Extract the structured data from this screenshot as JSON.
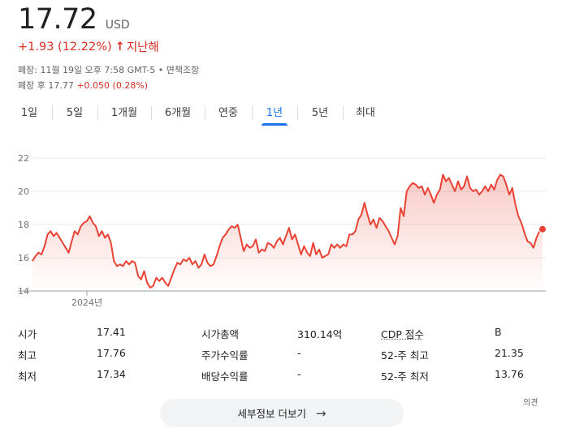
{
  "quote": {
    "price": "17.72",
    "currency": "USD",
    "change": "+1.93 (12.22%)",
    "arrow_icon": "arrow-up-icon",
    "period": "지난해",
    "market_status": "폐장: 11월 19일 오후 7:58 GMT-5 • 면책조항",
    "post_market_prefix": "폐장 후 17.77",
    "post_market_change": "+0.050 (0.28%)"
  },
  "colors": {
    "accent": "#1a73e8",
    "negative": "#d93025",
    "line": "#ea4335",
    "grid": "#e8eaed"
  },
  "tabs": [
    {
      "label": "1일"
    },
    {
      "label": "5일"
    },
    {
      "label": "1개월"
    },
    {
      "label": "6개월"
    },
    {
      "label": "연중"
    },
    {
      "label": "1년",
      "active": true
    },
    {
      "label": "5년"
    },
    {
      "label": "최대"
    }
  ],
  "chart_data": {
    "type": "area",
    "y_ticks": [
      "22",
      "20",
      "18",
      "16",
      "14"
    ],
    "x_ticks": [
      "2024년"
    ],
    "ylim": [
      14,
      22
    ],
    "grid": true,
    "values": [
      15.8,
      16.1,
      16.3,
      16.2,
      16.7,
      17.4,
      17.6,
      17.3,
      17.5,
      17.2,
      16.9,
      16.6,
      16.3,
      17.0,
      17.6,
      17.4,
      17.9,
      18.1,
      18.2,
      18.5,
      18.1,
      17.9,
      17.3,
      17.6,
      17.2,
      17.4,
      16.9,
      15.8,
      15.5,
      15.6,
      15.5,
      15.8,
      15.6,
      15.8,
      15.7,
      14.9,
      14.7,
      15.2,
      14.5,
      14.2,
      14.3,
      14.8,
      14.6,
      14.8,
      14.5,
      14.3,
      14.8,
      15.3,
      15.7,
      15.6,
      15.9,
      15.8,
      16.0,
      15.6,
      15.8,
      15.4,
      15.6,
      16.2,
      15.7,
      15.5,
      15.6,
      16.1,
      16.7,
      17.2,
      17.4,
      17.7,
      17.9,
      17.8,
      18.0,
      17.2,
      16.4,
      16.8,
      16.6,
      16.7,
      17.1,
      16.3,
      16.5,
      16.4,
      16.9,
      16.8,
      16.6,
      17.0,
      17.2,
      16.8,
      17.3,
      17.8,
      17.1,
      17.4,
      16.8,
      16.2,
      16.7,
      16.3,
      16.1,
      16.9,
      16.2,
      16.5,
      16.0,
      16.1,
      16.2,
      16.8,
      16.6,
      16.8,
      16.6,
      16.8,
      16.7,
      17.4,
      17.4,
      17.6,
      18.3,
      18.6,
      19.3,
      18.6,
      18.0,
      18.3,
      17.8,
      18.4,
      18.2,
      17.9,
      17.6,
      17.2,
      16.8,
      17.3,
      19.0,
      18.5,
      20.0,
      20.3,
      20.5,
      20.4,
      20.2,
      20.3,
      19.8,
      20.2,
      19.8,
      19.3,
      19.8,
      20.1,
      21.0,
      20.6,
      20.8,
      20.4,
      20.0,
      20.6,
      20.1,
      20.3,
      20.9,
      20.2,
      20.0,
      20.1,
      19.8,
      20.0,
      20.3,
      20.0,
      20.4,
      20.1,
      20.7,
      21.0,
      20.9,
      20.4,
      19.8,
      20.2,
      19.2,
      18.5,
      18.1,
      17.5,
      17.0,
      16.9,
      16.6,
      17.2,
      17.6,
      17.72
    ]
  },
  "stats": [
    [
      {
        "label": "시가",
        "value": "17.41"
      },
      {
        "label": "시가총액",
        "value": "310.14억"
      },
      {
        "label": "CDP 점수",
        "value": "B",
        "underline": true
      }
    ],
    [
      {
        "label": "최고",
        "value": "17.76"
      },
      {
        "label": "주가수익률",
        "value": "-"
      },
      {
        "label": "52-주 최고",
        "value": "21.35"
      }
    ],
    [
      {
        "label": "최저",
        "value": "17.34"
      },
      {
        "label": "배당수익률",
        "value": "-"
      },
      {
        "label": "52-주 최저",
        "value": "13.76"
      }
    ]
  ],
  "opinion_label": "의견",
  "more_button": {
    "label": "세부정보 더보기",
    "icon": "arrow-right-icon"
  }
}
